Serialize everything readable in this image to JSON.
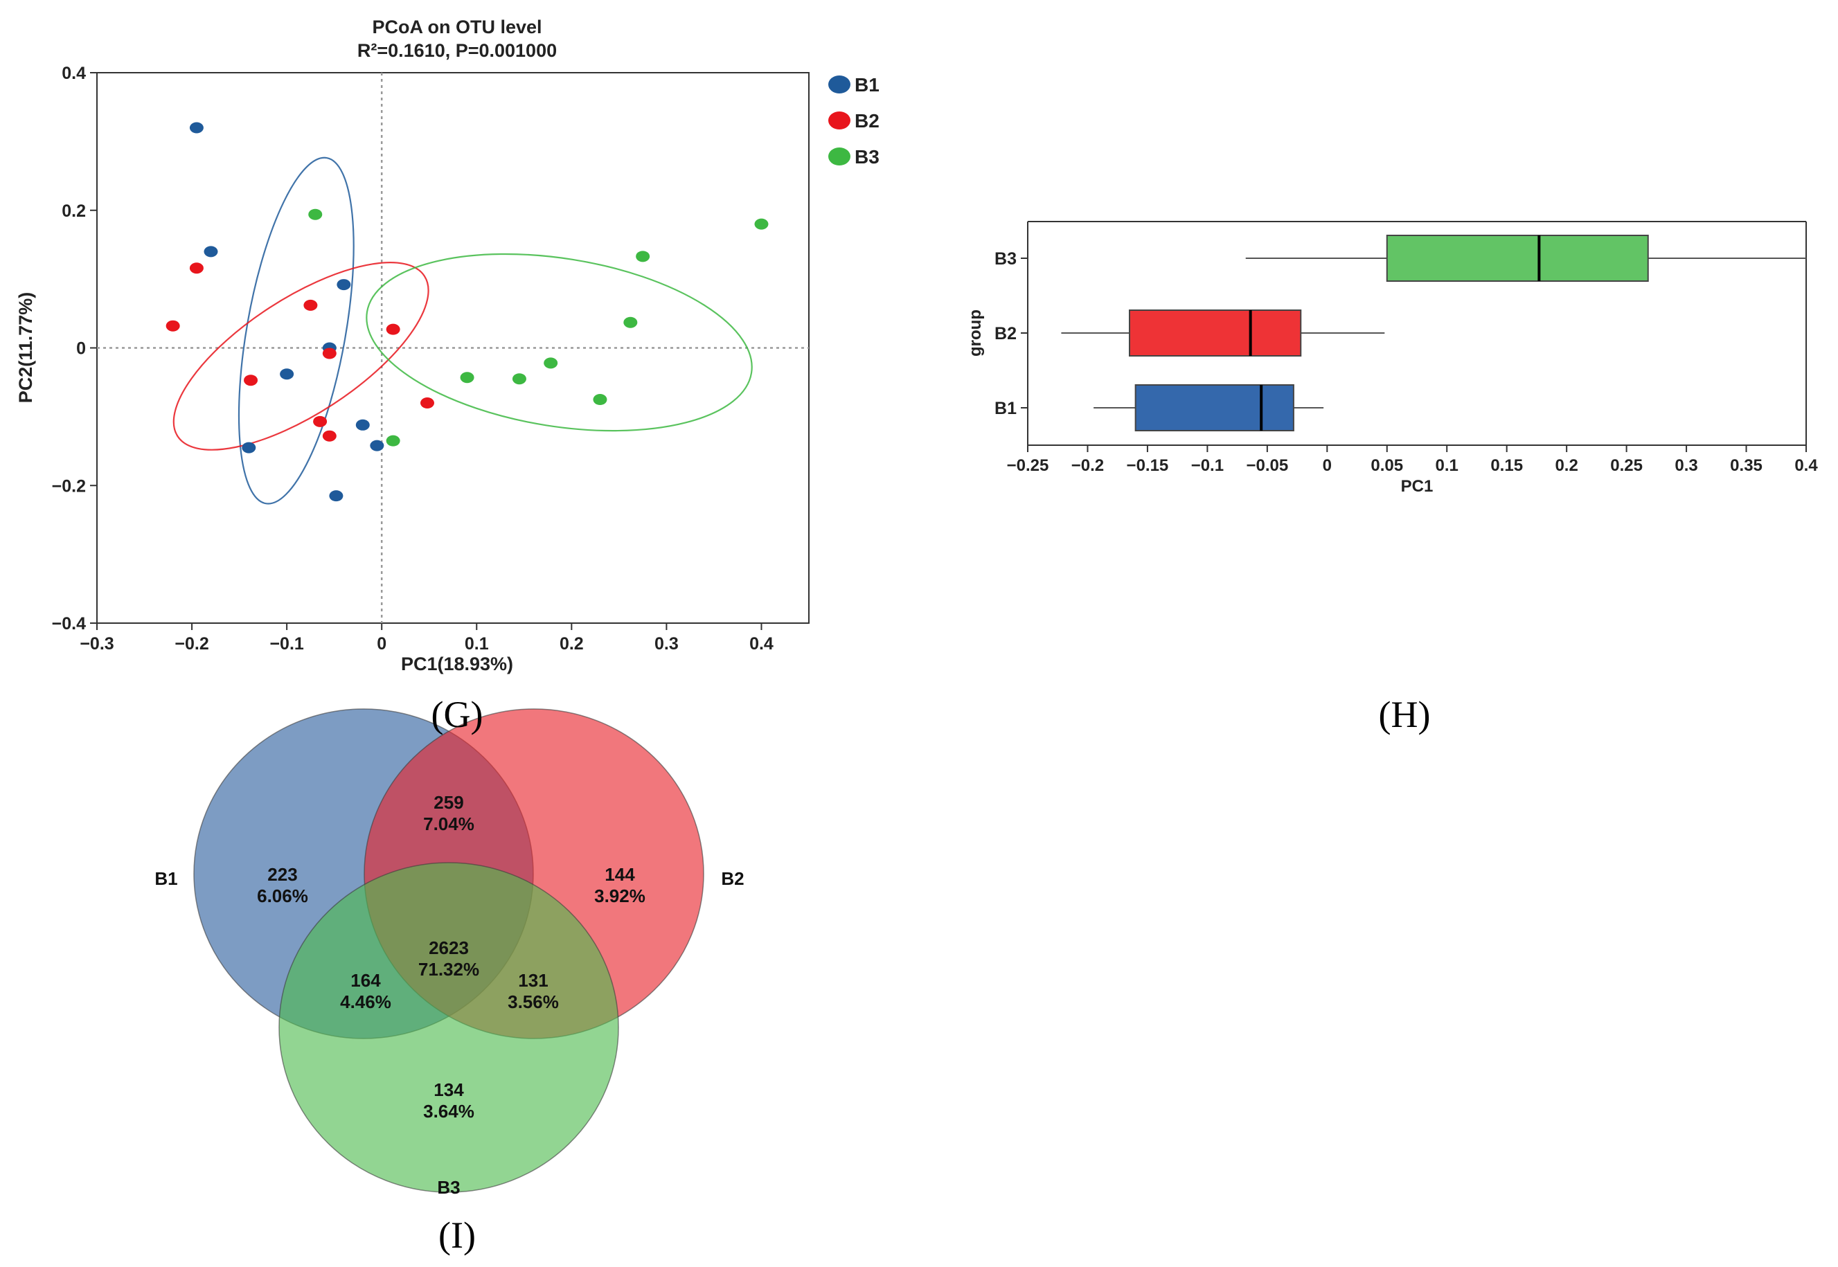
{
  "panel_labels": {
    "g": "(G)",
    "h": "(H)",
    "i": "(I)"
  },
  "colors": {
    "B1": "#1f5a9a",
    "B2": "#e8151c",
    "B3": "#3db842",
    "box_B1": "#3468ac",
    "box_B2": "#ee3336",
    "box_B3": "#62c465",
    "venn_B1": "#2d5f9e",
    "venn_B2": "#e8242c",
    "venn_B3": "#4fbb4f"
  },
  "chart_data": [
    {
      "type": "scatter",
      "title": "PCoA on OTU level",
      "subtitle": "R²=0.1610, P=0.001000",
      "xlabel": "PC1(18.93%)",
      "ylabel": "PC2(11.77%)",
      "xlim": [
        -0.3,
        0.45
      ],
      "ylim": [
        -0.4,
        0.4
      ],
      "xticks": [
        -0.3,
        -0.2,
        -0.1,
        0,
        0.1,
        0.2,
        0.3,
        0.4
      ],
      "xtick_labels": [
        "−0.3",
        "−0.2",
        "−0.1",
        "0",
        "0.1",
        "0.2",
        "0.3",
        "0.4"
      ],
      "yticks": [
        -0.4,
        -0.2,
        0,
        0.2,
        0.4
      ],
      "ytick_labels": [
        "−0.4",
        "−0.2",
        "0",
        "0.2",
        "0.4"
      ],
      "legend": [
        "B1",
        "B2",
        "B3"
      ],
      "legend_position": "top-right outside",
      "series": [
        {
          "name": "B1",
          "points": [
            [
              -0.195,
              0.32
            ],
            [
              -0.18,
              0.14
            ],
            [
              -0.04,
              0.092
            ],
            [
              -0.055,
              0.0
            ],
            [
              -0.1,
              -0.038
            ],
            [
              -0.02,
              -0.112
            ],
            [
              -0.005,
              -0.142
            ],
            [
              -0.14,
              -0.145
            ],
            [
              -0.048,
              -0.215
            ]
          ]
        },
        {
          "name": "B2",
          "points": [
            [
              -0.195,
              0.116
            ],
            [
              -0.22,
              0.032
            ],
            [
              -0.075,
              0.062
            ],
            [
              -0.055,
              -0.008
            ],
            [
              0.012,
              0.027
            ],
            [
              -0.138,
              -0.047
            ],
            [
              -0.065,
              -0.107
            ],
            [
              -0.055,
              -0.128
            ],
            [
              0.048,
              -0.08
            ]
          ]
        },
        {
          "name": "B3",
          "points": [
            [
              -0.07,
              0.194
            ],
            [
              0.012,
              -0.135
            ],
            [
              0.09,
              -0.043
            ],
            [
              0.145,
              -0.045
            ],
            [
              0.178,
              -0.022
            ],
            [
              0.23,
              -0.075
            ],
            [
              0.262,
              0.037
            ],
            [
              0.275,
              0.133
            ],
            [
              0.4,
              0.18
            ]
          ]
        }
      ],
      "ellipses": [
        {
          "group": "B1",
          "center": [
            -0.09,
            0.025
          ],
          "semi_axes": [
            0.052,
            0.255
          ],
          "rotation_deg": 10
        },
        {
          "group": "B2",
          "center": [
            -0.085,
            -0.012
          ],
          "semi_axes": [
            0.155,
            0.084
          ],
          "rotation_deg": -33
        },
        {
          "group": "B3",
          "center": [
            0.187,
            0.008
          ],
          "semi_axes": [
            0.205,
            0.122
          ],
          "rotation_deg": 9
        }
      ]
    },
    {
      "type": "box",
      "xlabel": "PC1",
      "ylabel": "group",
      "xlim": [
        -0.25,
        0.4
      ],
      "xticks": [
        -0.25,
        -0.2,
        -0.15,
        -0.1,
        -0.05,
        0,
        0.05,
        0.1,
        0.15,
        0.2,
        0.25,
        0.3,
        0.35,
        0.4
      ],
      "xtick_labels": [
        "−0.25",
        "−0.2",
        "−0.15",
        "−0.1",
        "−0.05",
        "0",
        "0.05",
        "0.1",
        "0.15",
        "0.2",
        "0.25",
        "0.3",
        "0.35",
        "0.4"
      ],
      "categories": [
        "B3",
        "B2",
        "B1"
      ],
      "boxes": [
        {
          "group": "B3",
          "min": -0.068,
          "q1": 0.05,
          "median": 0.177,
          "q3": 0.268,
          "max": 0.4
        },
        {
          "group": "B2",
          "min": -0.222,
          "q1": -0.165,
          "median": -0.064,
          "q3": -0.022,
          "max": 0.048
        },
        {
          "group": "B1",
          "min": -0.195,
          "q1": -0.16,
          "median": -0.055,
          "q3": -0.028,
          "max": -0.003
        }
      ]
    },
    {
      "type": "venn",
      "sets": [
        "B1",
        "B2",
        "B3"
      ],
      "regions": [
        {
          "sets": [
            "B1"
          ],
          "count": "223",
          "percent": "6.06%"
        },
        {
          "sets": [
            "B2"
          ],
          "count": "144",
          "percent": "3.92%"
        },
        {
          "sets": [
            "B3"
          ],
          "count": "134",
          "percent": "3.64%"
        },
        {
          "sets": [
            "B1",
            "B2"
          ],
          "count": "259",
          "percent": "7.04%"
        },
        {
          "sets": [
            "B1",
            "B3"
          ],
          "count": "164",
          "percent": "4.46%"
        },
        {
          "sets": [
            "B2",
            "B3"
          ],
          "count": "131",
          "percent": "3.56%"
        },
        {
          "sets": [
            "B1",
            "B2",
            "B3"
          ],
          "count": "2623",
          "percent": "71.32%"
        }
      ]
    }
  ]
}
